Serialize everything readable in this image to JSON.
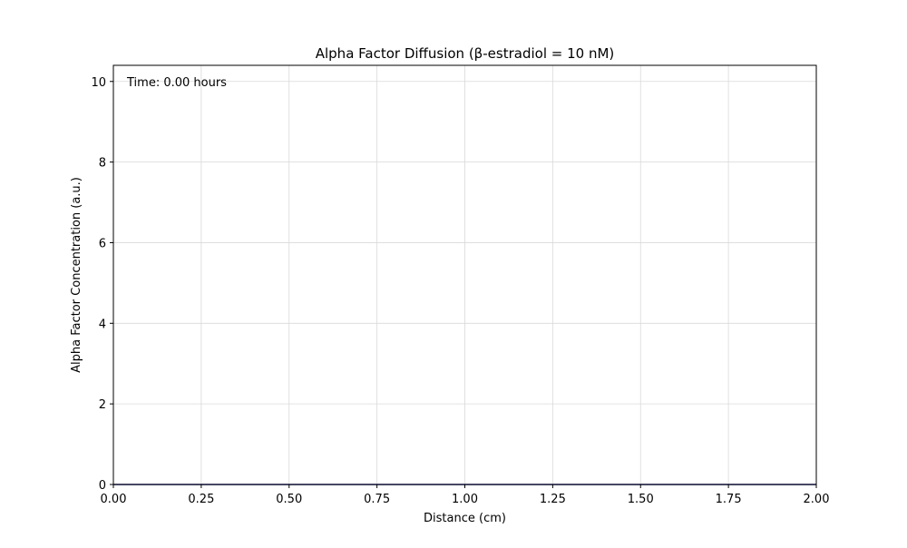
{
  "chart_data": {
    "type": "line",
    "title": "Alpha Factor Diffusion (β-estradiol = 10 nM)",
    "xlabel": "Distance (cm)",
    "ylabel": "Alpha Factor Concentration (a.u.)",
    "xlim": [
      0,
      2
    ],
    "ylim": [
      0,
      10.4
    ],
    "x_ticks": [
      0,
      0.25,
      0.5,
      0.75,
      1.0,
      1.25,
      1.5,
      1.75,
      2.0
    ],
    "x_tick_labels": [
      "0.00",
      "0.25",
      "0.50",
      "0.75",
      "1.00",
      "1.25",
      "1.50",
      "1.75",
      "2.00"
    ],
    "y_ticks": [
      0,
      2,
      4,
      6,
      8,
      10
    ],
    "y_tick_labels": [
      "0",
      "2",
      "4",
      "6",
      "8",
      "10"
    ],
    "grid": true,
    "annotation": "Time: 0.00 hours",
    "series": [
      {
        "color": "#1f1f8f",
        "x": [
          0,
          2
        ],
        "y": [
          0,
          0
        ]
      }
    ]
  }
}
